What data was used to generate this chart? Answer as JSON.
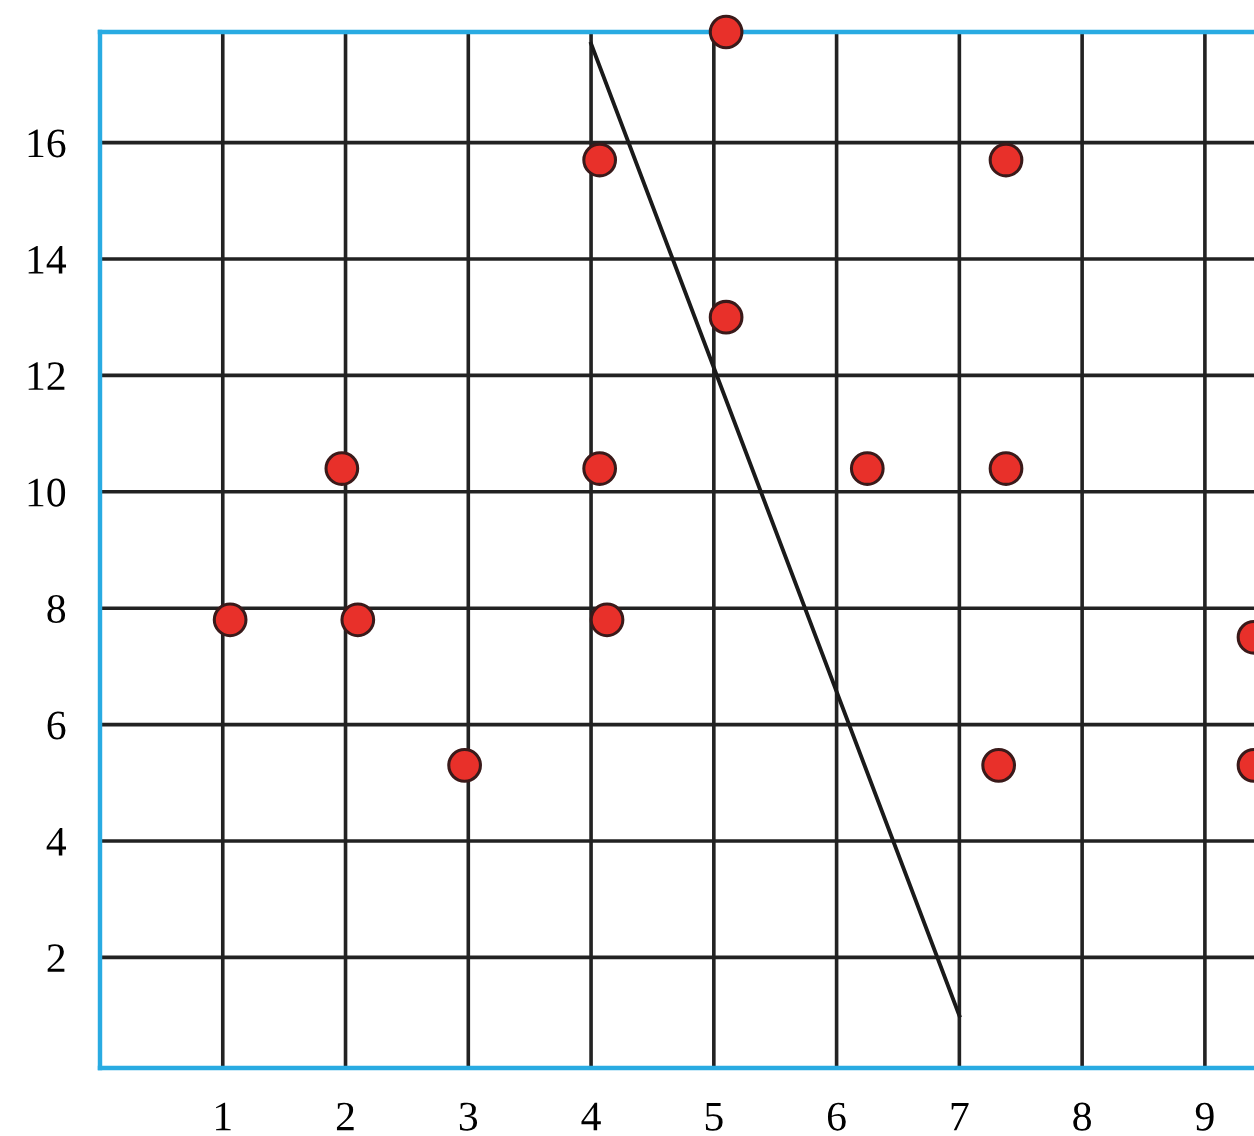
{
  "chart_data": {
    "type": "scatter",
    "xlim": [
      0,
      9.4
    ],
    "ylim": [
      0.1,
      17.9
    ],
    "xticks": [
      1,
      2,
      3,
      4,
      5,
      6,
      7,
      8,
      9
    ],
    "yticks": [
      2,
      4,
      6,
      8,
      10,
      12,
      14,
      16
    ],
    "grid": true,
    "series": [
      {
        "color": "#e8302a",
        "marker": "circle",
        "x": [
          5.1,
          4.07,
          7.38,
          5.1,
          1.97,
          4.07,
          6.25,
          7.38,
          1.06,
          2.1,
          4.13,
          2.97,
          7.32,
          9.4,
          9.4
        ],
        "values": [
          17.9,
          15.7,
          15.7,
          13.0,
          10.4,
          10.4,
          10.4,
          10.4,
          7.8,
          7.8,
          7.8,
          5.3,
          5.3,
          7.5,
          5.3
        ]
      },
      {
        "type": "line",
        "color": "#1a1a1a",
        "marker": "none",
        "line_style": "solid",
        "x": [
          4,
          7
        ],
        "values": [
          17.7,
          1.0
        ]
      }
    ]
  }
}
